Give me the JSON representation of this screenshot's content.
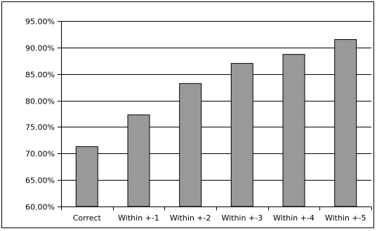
{
  "chart_data": {
    "type": "bar",
    "title": "",
    "xlabel": "",
    "ylabel": "",
    "categories": [
      "Correct",
      "Within +-1",
      "Within +-2",
      "Within +-3",
      "Within +-4",
      "Within +-5"
    ],
    "values": [
      71.3,
      77.3,
      83.2,
      87.0,
      88.7,
      91.5
    ],
    "ylim": [
      60,
      95
    ],
    "yticks": [
      60,
      65,
      70,
      75,
      80,
      85,
      90,
      95
    ],
    "ytick_labels": [
      "60.00%",
      "65.00%",
      "70.00%",
      "75.00%",
      "80.00%",
      "85.00%",
      "90.00%",
      "95.00%"
    ],
    "grid": true,
    "legend": "none",
    "bar_color": "#999999",
    "bar_edge_color": "#000000"
  }
}
